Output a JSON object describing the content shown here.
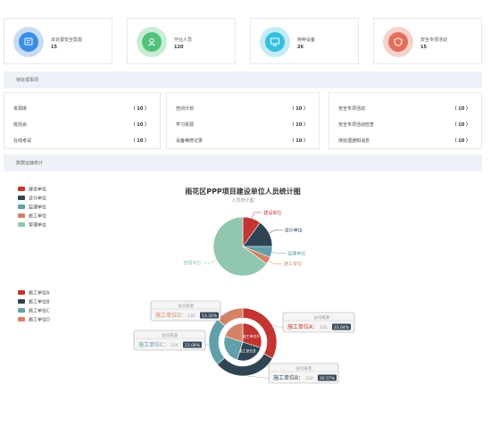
{
  "stats": [
    {
      "label": "本处置安全隐患",
      "value": "15",
      "color": "#3a8ee6",
      "ring": "#c9dcf5",
      "icon": "screen-icon"
    },
    {
      "label": "作业人员",
      "value": "120",
      "color": "#52c27a",
      "ring": "#c8ecd4",
      "icon": "worker-icon"
    },
    {
      "label": "特种设备",
      "value": "26",
      "color": "#35c0e0",
      "ring": "#c3ecf6",
      "icon": "monitor-icon"
    },
    {
      "label": "安全专项活动",
      "value": "15",
      "color": "#e0705c",
      "ring": "#f6d3cc",
      "icon": "shield-icon"
    }
  ],
  "todo_section": {
    "title": "待处理事项"
  },
  "todo_columns": [
    [
      {
        "label": "资源库",
        "count": "（ 10 ）"
      },
      {
        "label": "班前会",
        "count": "（ 10 ）"
      },
      {
        "label": "在线考试",
        "count": "（ 10 ）"
      }
    ],
    [
      {
        "label": "培训计划",
        "count": "（ 10 ）"
      },
      {
        "label": "学习资源",
        "count": "（ 10 ）"
      },
      {
        "label": "设备维修记录",
        "count": "（ 10 ）"
      }
    ],
    [
      {
        "label": "安全专项活动",
        "count": "（ 10 ）"
      },
      {
        "label": "安全专项活动检查",
        "count": "（ 10 ）"
      },
      {
        "label": "待处理通知消息",
        "count": "（ 10 ）"
      }
    ]
  ],
  "stats_section": {
    "title": "数据运输统计"
  },
  "chart_data": [
    {
      "type": "pie",
      "title": "雨花区PPP项目建设单位人员统计图",
      "subtitle": "人员统计图",
      "legend_position": "top-left",
      "categories": [
        "建设单位",
        "设计单位",
        "监理单位",
        "施工单位",
        "管理单位"
      ],
      "values": [
        10,
        15,
        6,
        4,
        65
      ],
      "colors": [
        "#c23531",
        "#2f4554",
        "#61a0a8",
        "#d48265",
        "#91c7ae"
      ]
    },
    {
      "type": "pie",
      "legend_position": "top-left",
      "categories": [
        "施工单位A",
        "施工单位B",
        "施工单位C",
        "施工单位D"
      ],
      "inner_values": [
        30,
        25,
        25,
        20
      ],
      "values": [
        335,
        310,
        234,
        135
      ],
      "percents": [
        "33.04%",
        "30.57%",
        "23.08%",
        "13.31%"
      ],
      "tooltip_title": "访问来源",
      "colors": [
        "#c23531",
        "#2f4554",
        "#61a0a8",
        "#d48265"
      ]
    }
  ]
}
